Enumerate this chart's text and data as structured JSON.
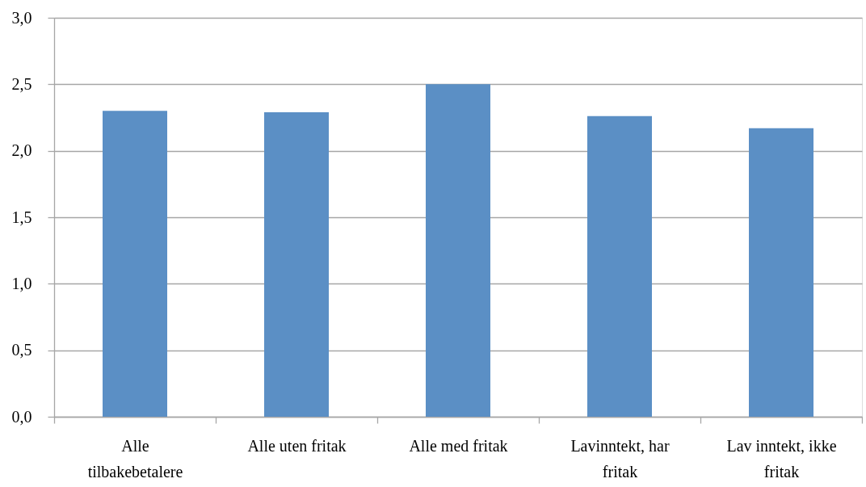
{
  "chart_data": {
    "type": "bar",
    "categories": [
      "Alle tilbakebetalere",
      "Alle uten fritak",
      "Alle med fritak",
      "Lavinntekt, har fritak",
      "Lav inntekt, ikke fritak"
    ],
    "values": [
      2.3,
      2.29,
      2.5,
      2.26,
      2.17
    ],
    "color": "#5b8fc5",
    "ylim": [
      0,
      3
    ],
    "yticks": [
      {
        "value": 0,
        "label": "0,0"
      },
      {
        "value": 0.5,
        "label": "0,5"
      },
      {
        "value": 1,
        "label": "1,0"
      },
      {
        "value": 1.5,
        "label": "1,5"
      },
      {
        "value": 2,
        "label": "2,0"
      },
      {
        "value": 2.5,
        "label": "2,5"
      },
      {
        "value": 3,
        "label": "3,0"
      }
    ],
    "grid": "y"
  }
}
